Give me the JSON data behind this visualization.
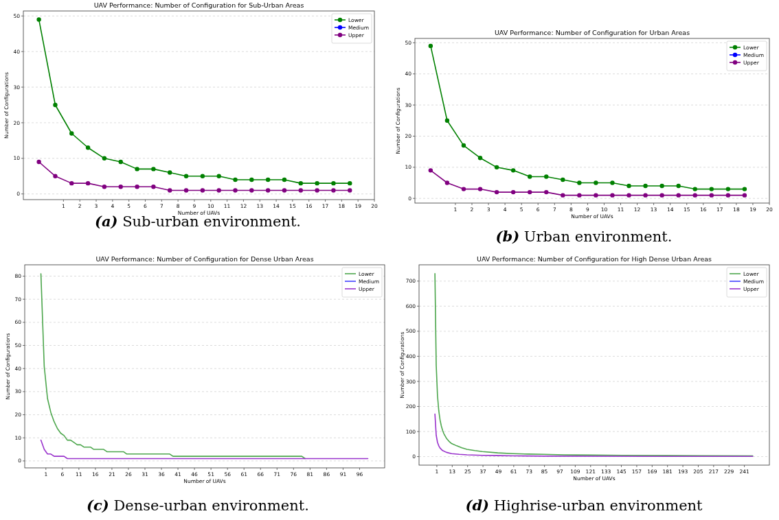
{
  "chart_data": [
    {
      "type": "line",
      "title": "UAV Performance: Number of Configuration for Sub-Urban Areas",
      "xlabel": "Number of UAVs",
      "ylabel": "Number of Configurations",
      "x": [
        -0.5,
        0.5,
        1.5,
        2.5,
        3.5,
        4.5,
        5.5,
        6.5,
        7.5,
        8.5,
        9.5,
        10.5,
        11.5,
        12.5,
        13.5,
        14.5,
        15.5,
        16.5,
        17.5,
        18.5
      ],
      "xlim": [
        -1.45,
        20
      ],
      "xticks": [
        1,
        2,
        3,
        4,
        5,
        6,
        7,
        8,
        9,
        10,
        11,
        12,
        13,
        14,
        15,
        16,
        17,
        18,
        19,
        20
      ],
      "ylim": [
        -1.6,
        51.4
      ],
      "yticks": [
        0,
        10,
        20,
        30,
        40,
        50
      ],
      "grid": "y",
      "legend": "top right",
      "marker": "circle",
      "line_style": "solid",
      "series": [
        {
          "name": "Lower",
          "color": "#008000",
          "values": [
            49,
            25,
            17,
            13,
            10,
            9,
            7,
            7,
            6,
            5,
            5,
            5,
            4,
            4,
            4,
            4,
            3,
            3,
            3,
            3
          ]
        },
        {
          "name": "Medium",
          "color": "#0000ff",
          "values": [
            null,
            null,
            null,
            null,
            null,
            null,
            null,
            null,
            null,
            null,
            null,
            null,
            null,
            null,
            null,
            null,
            null,
            null,
            null,
            null
          ]
        },
        {
          "name": "Upper",
          "color": "#800080",
          "values": [
            9,
            5,
            3,
            3,
            2,
            2,
            2,
            2,
            1,
            1,
            1,
            1,
            1,
            1,
            1,
            1,
            1,
            1,
            1,
            1
          ]
        }
      ],
      "annotations": [
        "(a) Sub-urban environment."
      ]
    },
    {
      "type": "line",
      "title": "UAV Performance: Number of Configuration for Urban Areas",
      "xlabel": "Number of UAVs",
      "ylabel": "Number of Configurations",
      "x": [
        -0.5,
        0.5,
        1.5,
        2.5,
        3.5,
        4.5,
        5.5,
        6.5,
        7.5,
        8.5,
        9.5,
        10.5,
        11.5,
        12.5,
        13.5,
        14.5,
        15.5,
        16.5,
        17.5,
        18.5
      ],
      "xlim": [
        -1.45,
        20
      ],
      "xticks": [
        1,
        2,
        3,
        4,
        5,
        6,
        7,
        8,
        9,
        10,
        11,
        12,
        13,
        14,
        15,
        16,
        17,
        18,
        19,
        20
      ],
      "ylim": [
        -1.5,
        51.4
      ],
      "yticks": [
        0,
        10,
        20,
        30,
        40,
        50
      ],
      "grid": "y",
      "legend": "top right",
      "marker": "circle",
      "line_style": "solid",
      "series": [
        {
          "name": "Lower",
          "color": "#008000",
          "values": [
            49,
            25,
            17,
            13,
            10,
            9,
            7,
            7,
            6,
            5,
            5,
            5,
            4,
            4,
            4,
            4,
            3,
            3,
            3,
            3
          ]
        },
        {
          "name": "Medium",
          "color": "#0000ff",
          "values": [
            null,
            null,
            null,
            null,
            null,
            null,
            null,
            null,
            null,
            null,
            null,
            null,
            null,
            null,
            null,
            null,
            null,
            null,
            null,
            null
          ]
        },
        {
          "name": "Upper",
          "color": "#800080",
          "values": [
            9,
            5,
            3,
            3,
            2,
            2,
            2,
            2,
            1,
            1,
            1,
            1,
            1,
            1,
            1,
            1,
            1,
            1,
            1,
            1
          ]
        }
      ],
      "annotations": [
        "(b) Urban environment."
      ]
    },
    {
      "type": "line",
      "title": "UAV Performance: Number of Configuration for Dense Urban Areas",
      "xlabel": "Number of UAVs",
      "ylabel": "Number of Configurations",
      "xlim": [
        -5.4,
        103.6
      ],
      "xticks": [
        1,
        6,
        11,
        16,
        21,
        26,
        31,
        36,
        41,
        46,
        51,
        56,
        61,
        66,
        71,
        76,
        81,
        86,
        91,
        96
      ],
      "ylim": [
        -3,
        84.9
      ],
      "yticks": [
        0,
        10,
        20,
        30,
        40,
        50,
        60,
        70,
        80
      ],
      "grid": "y",
      "legend": "top right",
      "marker": "none",
      "line_style": "solid",
      "series": [
        {
          "name": "Lower",
          "color": "#4ca64c",
          "x": [
            -0.5,
            0.5,
            1.5,
            2.5,
            3.5,
            4.5,
            5.5,
            6.5,
            7.5,
            8.5,
            9.5,
            10.5,
            11.5,
            12.5,
            14.5,
            15.5,
            18.5,
            19.5,
            24.5,
            25.5,
            38.5,
            39.5,
            78.5,
            79.5
          ],
          "values": [
            81,
            41,
            27,
            21,
            17,
            14,
            12,
            11,
            9,
            9,
            8,
            7,
            7,
            6,
            6,
            5,
            5,
            4,
            4,
            3,
            3,
            2,
            2,
            1
          ]
        },
        {
          "name": "Medium",
          "color": "#4040ff"
        },
        {
          "name": "Upper",
          "color": "#9932cc",
          "x": [
            -0.5,
            0.5,
            1.5,
            2.5,
            3.5,
            6.5,
            7.5,
            98.5
          ],
          "values": [
            9,
            5,
            3,
            3,
            2,
            2,
            1,
            1
          ]
        }
      ],
      "annotations": [
        "(c) Dense-urban environment."
      ]
    },
    {
      "type": "line",
      "title": "UAV Performance: Number of Configuration for High Dense Urban Areas",
      "xlabel": "Number of UAVs",
      "ylabel": "Number of Configurations",
      "xlim": [
        -12.9,
        260.5
      ],
      "xticks": [
        1,
        13,
        25,
        37,
        49,
        61,
        73,
        85,
        97,
        109,
        121,
        133,
        145,
        157,
        169,
        181,
        193,
        205,
        217,
        229,
        241
      ],
      "ylim": [
        -34,
        765
      ],
      "yticks": [
        0,
        100,
        200,
        300,
        400,
        500,
        600,
        700
      ],
      "grid": "y",
      "legend": "top right",
      "marker": "none",
      "line_style": "solid",
      "series": [
        {
          "name": "Lower",
          "color": "#4ca64c",
          "x": [
            -0.5,
            0.5,
            1.5,
            2.5,
            3.5,
            4.5,
            5.5,
            6.5,
            8.5,
            10.5,
            12.5,
            16.5,
            20.5,
            24.5,
            30.5,
            36.5,
            48.5,
            60.5,
            72.5,
            84.5,
            100.5,
            120.5,
            145.5,
            181.5,
            247.5
          ],
          "values": [
            730,
            365,
            243,
            183,
            146,
            122,
            104,
            91,
            73,
            61,
            52,
            43,
            35,
            29,
            24,
            20,
            15,
            12,
            10,
            9,
            7,
            6,
            5,
            4,
            3
          ]
        },
        {
          "name": "Medium",
          "color": "#4040ff"
        },
        {
          "name": "Upper",
          "color": "#9932cc",
          "x": [
            -0.5,
            0.5,
            1.5,
            2.5,
            3.5,
            5.5,
            8.5,
            12.5,
            18.5,
            24.5,
            36.5,
            48.5,
            60.5,
            84.5,
            168.5,
            247.5
          ],
          "values": [
            170,
            85,
            57,
            43,
            34,
            24,
            17,
            12,
            9,
            7,
            5,
            4,
            3,
            2,
            1,
            1
          ]
        }
      ],
      "annotations": [
        "(d) Highrise-urban environment"
      ]
    }
  ]
}
